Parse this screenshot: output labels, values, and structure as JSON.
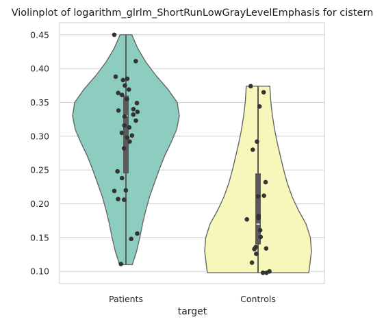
{
  "chart_data": {
    "type": "violin",
    "title": "Violinplot of logarithm_glrlm_ShortRunLowGrayLevelEmphasis for cistern",
    "xlabel": "target",
    "ylabel": "",
    "ylim": [
      0.082,
      0.468
    ],
    "yticks": [
      "0.10",
      "0.15",
      "0.20",
      "0.25",
      "0.30",
      "0.35",
      "0.40",
      "0.45"
    ],
    "categories": [
      "Patients",
      "Controls"
    ],
    "grid": true,
    "colors": {
      "Patients": "#8dcdc0",
      "Controls": "#f8f7bb"
    },
    "series": [
      {
        "category": "Patients",
        "min": 0.11,
        "max": 0.45,
        "q1": 0.245,
        "median": 0.33,
        "q3": 0.36,
        "density": [
          [
            0.11,
            0.12
          ],
          [
            0.13,
            0.2
          ],
          [
            0.15,
            0.26
          ],
          [
            0.17,
            0.31
          ],
          [
            0.19,
            0.37
          ],
          [
            0.21,
            0.44
          ],
          [
            0.23,
            0.53
          ],
          [
            0.25,
            0.62
          ],
          [
            0.27,
            0.72
          ],
          [
            0.29,
            0.84
          ],
          [
            0.31,
            0.95
          ],
          [
            0.33,
            1.0
          ],
          [
            0.35,
            0.96
          ],
          [
            0.37,
            0.78
          ],
          [
            0.39,
            0.56
          ],
          [
            0.41,
            0.37
          ],
          [
            0.43,
            0.22
          ],
          [
            0.45,
            0.11
          ]
        ],
        "points": [
          0.45,
          0.411,
          0.388,
          0.385,
          0.383,
          0.375,
          0.369,
          0.364,
          0.361,
          0.355,
          0.349,
          0.34,
          0.338,
          0.336,
          0.332,
          0.329,
          0.323,
          0.316,
          0.313,
          0.305,
          0.301,
          0.298,
          0.292,
          0.282,
          0.248,
          0.238,
          0.22,
          0.219,
          0.207,
          0.206,
          0.156,
          0.148,
          0.111
        ]
      },
      {
        "category": "Controls",
        "min": 0.098,
        "max": 0.374,
        "q1": 0.14,
        "median": 0.17,
        "q3": 0.245,
        "density": [
          [
            0.098,
            0.95
          ],
          [
            0.11,
            0.97
          ],
          [
            0.13,
            1.0
          ],
          [
            0.15,
            0.98
          ],
          [
            0.17,
            0.9
          ],
          [
            0.19,
            0.76
          ],
          [
            0.21,
            0.64
          ],
          [
            0.23,
            0.55
          ],
          [
            0.25,
            0.48
          ],
          [
            0.27,
            0.42
          ],
          [
            0.29,
            0.36
          ],
          [
            0.31,
            0.31
          ],
          [
            0.33,
            0.27
          ],
          [
            0.35,
            0.24
          ],
          [
            0.374,
            0.22
          ]
        ],
        "points": [
          0.374,
          0.365,
          0.344,
          0.292,
          0.28,
          0.232,
          0.212,
          0.211,
          0.182,
          0.179,
          0.177,
          0.161,
          0.151,
          0.136,
          0.134,
          0.133,
          0.126,
          0.113,
          0.1,
          0.098,
          0.098
        ]
      }
    ]
  }
}
